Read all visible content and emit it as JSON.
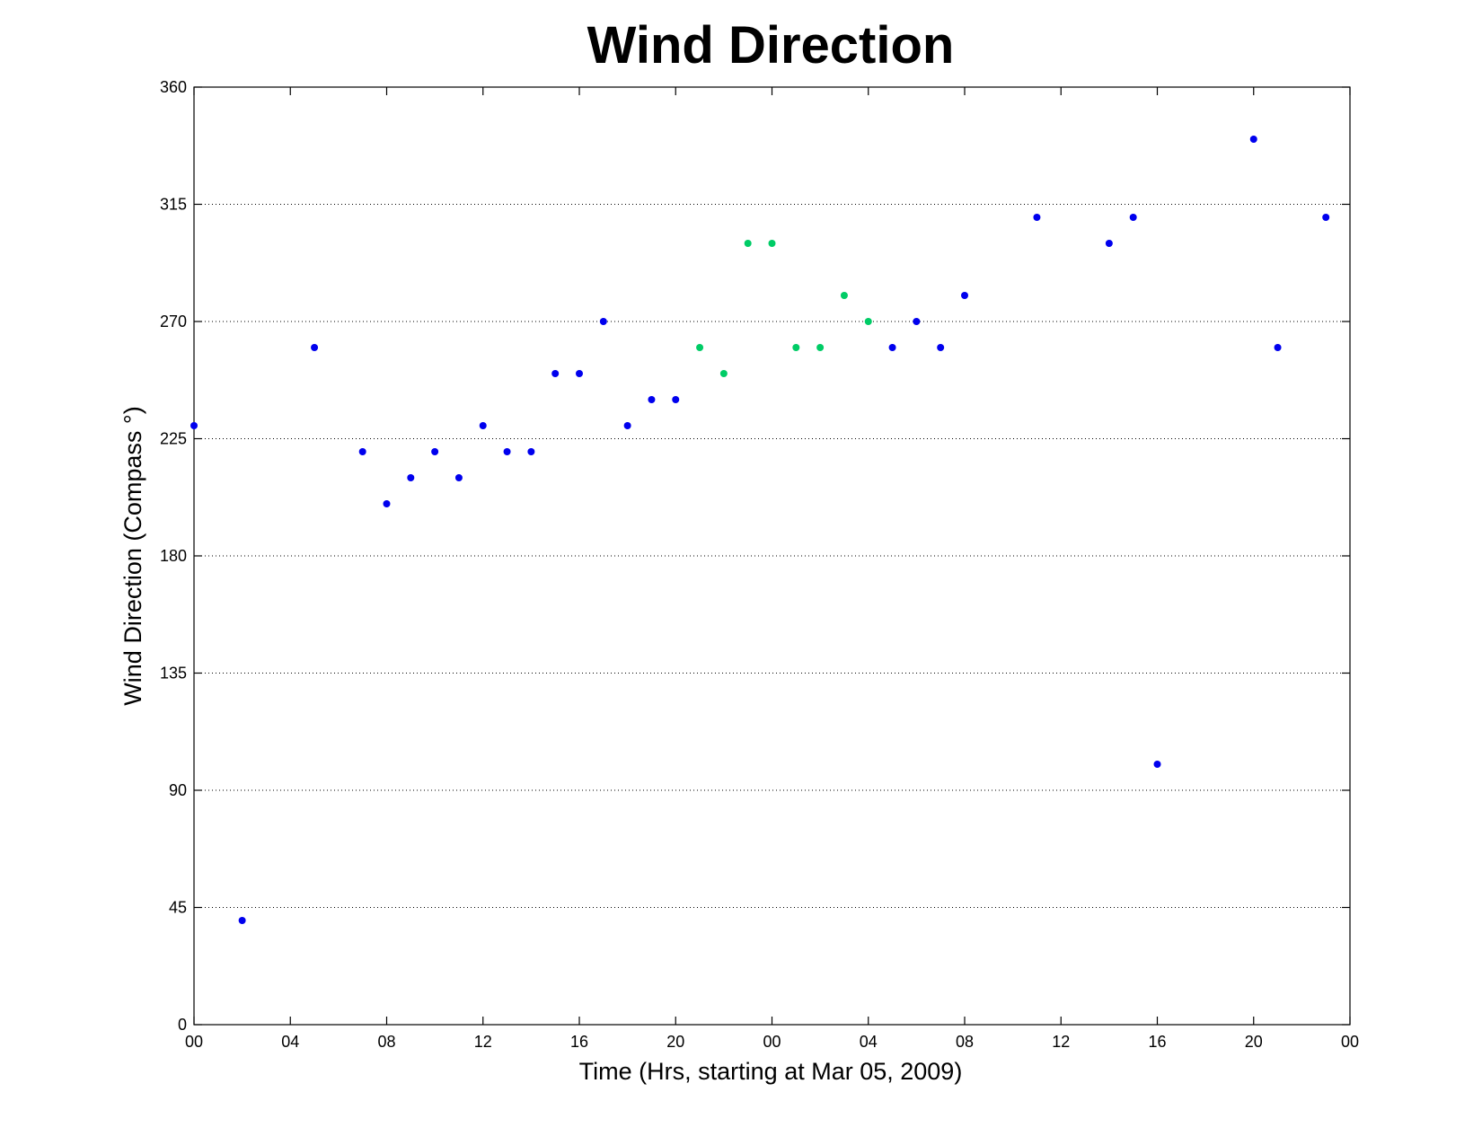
{
  "chart_data": {
    "type": "scatter",
    "title": "Wind Direction",
    "xlabel": "Time (Hrs, starting at Mar 05, 2009)",
    "ylabel": "Wind Direction (Compass  °)",
    "xlim": [
      0,
      48
    ],
    "ylim": [
      0,
      360
    ],
    "x_ticks": [
      0,
      4,
      8,
      12,
      16,
      20,
      24,
      28,
      32,
      36,
      40,
      44,
      48
    ],
    "x_tick_labels": [
      "00",
      "04",
      "08",
      "12",
      "16",
      "20",
      "00",
      "04",
      "08",
      "12",
      "16",
      "20",
      "00"
    ],
    "y_ticks": [
      0,
      45,
      90,
      135,
      180,
      225,
      270,
      315,
      360
    ],
    "y_tick_labels": [
      "0",
      "45",
      "90",
      "135",
      "180",
      "225",
      "270",
      "315",
      "360"
    ],
    "grid": "horizontal dotted",
    "colors": {
      "primary": "#0000ee",
      "secondary": "#00cc66"
    },
    "series": [
      {
        "color": "#0000ee",
        "x": [
          0,
          2,
          5,
          7,
          8,
          9,
          10,
          11,
          12,
          13,
          14,
          15,
          16,
          17,
          18,
          19,
          20,
          29,
          30,
          31,
          32,
          35,
          38,
          39,
          40,
          44,
          45,
          47
        ],
        "y": [
          230,
          40,
          260,
          220,
          200,
          210,
          220,
          210,
          230,
          220,
          220,
          250,
          250,
          270,
          230,
          240,
          240,
          260,
          270,
          260,
          280,
          310,
          300,
          310,
          100,
          340,
          260,
          310
        ]
      },
      {
        "color": "#00cc66",
        "x": [
          21,
          22,
          23,
          24,
          25,
          26,
          27,
          28
        ],
        "y": [
          260,
          250,
          300,
          300,
          260,
          260,
          280,
          270
        ]
      }
    ]
  }
}
